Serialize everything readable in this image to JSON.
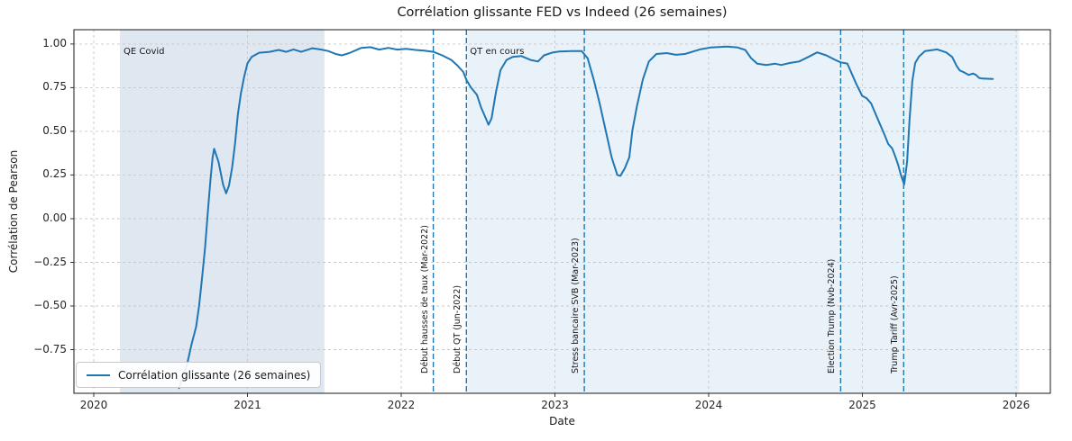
{
  "figure": {
    "title": "Corrélation glissante FED vs Indeed (26 semaines)",
    "xlabel": "Date",
    "ylabel": "Corrélation de Pearson"
  },
  "legend": {
    "label": "Corrélation glissante (26 semaines)"
  },
  "chart_data": {
    "type": "line",
    "title": "Corrélation glissante FED vs Indeed (26 semaines)",
    "xlabel": "Date",
    "ylabel": "Corrélation de Pearson",
    "xlim": [
      2019.871,
      2026.223
    ],
    "ylim": [
      -1.0,
      1.082
    ],
    "grid": true,
    "legend_position": "lower left",
    "colors": {
      "grid": "#c9c9c9",
      "vline": "#1f77b4",
      "spine": "#1a1a1a",
      "tick": "#333333"
    },
    "x_ticks": [
      {
        "v": 2020,
        "label": "2020"
      },
      {
        "v": 2021,
        "label": "2021"
      },
      {
        "v": 2022,
        "label": "2022"
      },
      {
        "v": 2023,
        "label": "2023"
      },
      {
        "v": 2024,
        "label": "2024"
      },
      {
        "v": 2025,
        "label": "2025"
      },
      {
        "v": 2026,
        "label": "2026"
      }
    ],
    "y_ticks": [
      {
        "v": 1.0,
        "label": "1.00"
      },
      {
        "v": 0.75,
        "label": "0.75"
      },
      {
        "v": 0.5,
        "label": "0.50"
      },
      {
        "v": 0.25,
        "label": "0.25"
      },
      {
        "v": 0.0,
        "label": "0.00"
      },
      {
        "v": -0.25,
        "label": "−0.25"
      },
      {
        "v": -0.5,
        "label": "−0.50"
      },
      {
        "v": -0.75,
        "label": "−0.75"
      }
    ],
    "spans": [
      {
        "label": "QE Covid",
        "x0": 2020.17,
        "x1": 2021.5,
        "color": "#dfe7f0"
      },
      {
        "label": "QT en cours",
        "x0": 2022.424,
        "x1": 2026.02,
        "color": "#e9f1f9"
      }
    ],
    "vlines": [
      {
        "label": "Début hausses de taux (Mar-2022)",
        "x": 2022.209
      },
      {
        "label": "Début QT (Jun-2022)",
        "x": 2022.424
      },
      {
        "label": "Stress bancaire SVB (Mar-2023)",
        "x": 2023.191
      },
      {
        "label": "Election Trump (Nvb-2024)",
        "x": 2024.859
      },
      {
        "label": "Trump Tariff (Avr-2025)",
        "x": 2025.269
      }
    ],
    "series": [
      {
        "name": "Corrélation glissante (26 semaines)",
        "color": "#1f77b4",
        "points": [
          [
            2020.555,
            -0.97
          ],
          [
            2020.607,
            -0.835
          ],
          [
            2020.636,
            -0.72
          ],
          [
            2020.666,
            -0.62
          ],
          [
            2020.685,
            -0.5
          ],
          [
            2020.704,
            -0.345
          ],
          [
            2020.724,
            -0.17
          ],
          [
            2020.743,
            0.05
          ],
          [
            2020.759,
            0.22
          ],
          [
            2020.773,
            0.35
          ],
          [
            2020.783,
            0.4
          ],
          [
            2020.812,
            0.325
          ],
          [
            2020.841,
            0.196
          ],
          [
            2020.861,
            0.145
          ],
          [
            2020.88,
            0.19
          ],
          [
            2020.9,
            0.29
          ],
          [
            2020.919,
            0.43
          ],
          [
            2020.938,
            0.6
          ],
          [
            2020.958,
            0.72
          ],
          [
            2020.978,
            0.81
          ],
          [
            2021.0,
            0.89
          ],
          [
            2021.027,
            0.926
          ],
          [
            2021.076,
            0.95
          ],
          [
            2021.144,
            0.955
          ],
          [
            2021.203,
            0.966
          ],
          [
            2021.252,
            0.955
          ],
          [
            2021.3,
            0.969
          ],
          [
            2021.349,
            0.955
          ],
          [
            2021.423,
            0.976
          ],
          [
            2021.481,
            0.968
          ],
          [
            2021.525,
            0.96
          ],
          [
            2021.574,
            0.943
          ],
          [
            2021.613,
            0.935
          ],
          [
            2021.662,
            0.948
          ],
          [
            2021.74,
            0.978
          ],
          [
            2021.799,
            0.982
          ],
          [
            2021.857,
            0.968
          ],
          [
            2021.916,
            0.978
          ],
          [
            2021.975,
            0.968
          ],
          [
            2022.033,
            0.972
          ],
          [
            2022.092,
            0.966
          ],
          [
            2022.15,
            0.962
          ],
          [
            2022.209,
            0.955
          ],
          [
            2022.267,
            0.935
          ],
          [
            2022.326,
            0.909
          ],
          [
            2022.365,
            0.878
          ],
          [
            2022.404,
            0.84
          ],
          [
            2022.424,
            0.795
          ],
          [
            2022.453,
            0.752
          ],
          [
            2022.492,
            0.71
          ],
          [
            2022.521,
            0.634
          ],
          [
            2022.551,
            0.574
          ],
          [
            2022.568,
            0.538
          ],
          [
            2022.588,
            0.574
          ],
          [
            2022.617,
            0.728
          ],
          [
            2022.646,
            0.85
          ],
          [
            2022.685,
            0.909
          ],
          [
            2022.724,
            0.926
          ],
          [
            2022.782,
            0.931
          ],
          [
            2022.841,
            0.909
          ],
          [
            2022.89,
            0.9
          ],
          [
            2022.929,
            0.935
          ],
          [
            2022.988,
            0.952
          ],
          [
            2023.027,
            0.957
          ],
          [
            2023.105,
            0.96
          ],
          [
            2023.174,
            0.96
          ],
          [
            2023.213,
            0.918
          ],
          [
            2023.252,
            0.797
          ],
          [
            2023.291,
            0.66
          ],
          [
            2023.33,
            0.505
          ],
          [
            2023.369,
            0.351
          ],
          [
            2023.406,
            0.25
          ],
          [
            2023.426,
            0.245
          ],
          [
            2023.455,
            0.29
          ],
          [
            2023.484,
            0.351
          ],
          [
            2023.504,
            0.505
          ],
          [
            2023.533,
            0.643
          ],
          [
            2023.572,
            0.797
          ],
          [
            2023.611,
            0.9
          ],
          [
            2023.66,
            0.943
          ],
          [
            2023.728,
            0.948
          ],
          [
            2023.787,
            0.938
          ],
          [
            2023.846,
            0.943
          ],
          [
            2023.943,
            0.969
          ],
          [
            2024.013,
            0.98
          ],
          [
            2024.121,
            0.985
          ],
          [
            2024.189,
            0.98
          ],
          [
            2024.238,
            0.966
          ],
          [
            2024.277,
            0.918
          ],
          [
            2024.316,
            0.887
          ],
          [
            2024.375,
            0.88
          ],
          [
            2024.433,
            0.887
          ],
          [
            2024.472,
            0.88
          ],
          [
            2024.531,
            0.892
          ],
          [
            2024.589,
            0.9
          ],
          [
            2024.648,
            0.926
          ],
          [
            2024.706,
            0.952
          ],
          [
            2024.765,
            0.935
          ],
          [
            2024.824,
            0.909
          ],
          [
            2024.859,
            0.895
          ],
          [
            2024.902,
            0.888
          ],
          [
            2024.96,
            0.772
          ],
          [
            2024.999,
            0.703
          ],
          [
            2025.028,
            0.689
          ],
          [
            2025.057,
            0.66
          ],
          [
            2025.086,
            0.6
          ],
          [
            2025.115,
            0.54
          ],
          [
            2025.145,
            0.479
          ],
          [
            2025.168,
            0.428
          ],
          [
            2025.194,
            0.402
          ],
          [
            2025.213,
            0.359
          ],
          [
            2025.233,
            0.308
          ],
          [
            2025.252,
            0.247
          ],
          [
            2025.272,
            0.196
          ],
          [
            2025.291,
            0.325
          ],
          [
            2025.307,
            0.565
          ],
          [
            2025.325,
            0.789
          ],
          [
            2025.344,
            0.892
          ],
          [
            2025.369,
            0.929
          ],
          [
            2025.408,
            0.96
          ],
          [
            2025.487,
            0.969
          ],
          [
            2025.545,
            0.952
          ],
          [
            2025.584,
            0.926
          ],
          [
            2025.613,
            0.875
          ],
          [
            2025.633,
            0.849
          ],
          [
            2025.662,
            0.837
          ],
          [
            2025.691,
            0.823
          ],
          [
            2025.72,
            0.831
          ],
          [
            2025.74,
            0.823
          ],
          [
            2025.759,
            0.806
          ],
          [
            2025.783,
            0.802
          ],
          [
            2025.849,
            0.8
          ]
        ]
      }
    ]
  }
}
